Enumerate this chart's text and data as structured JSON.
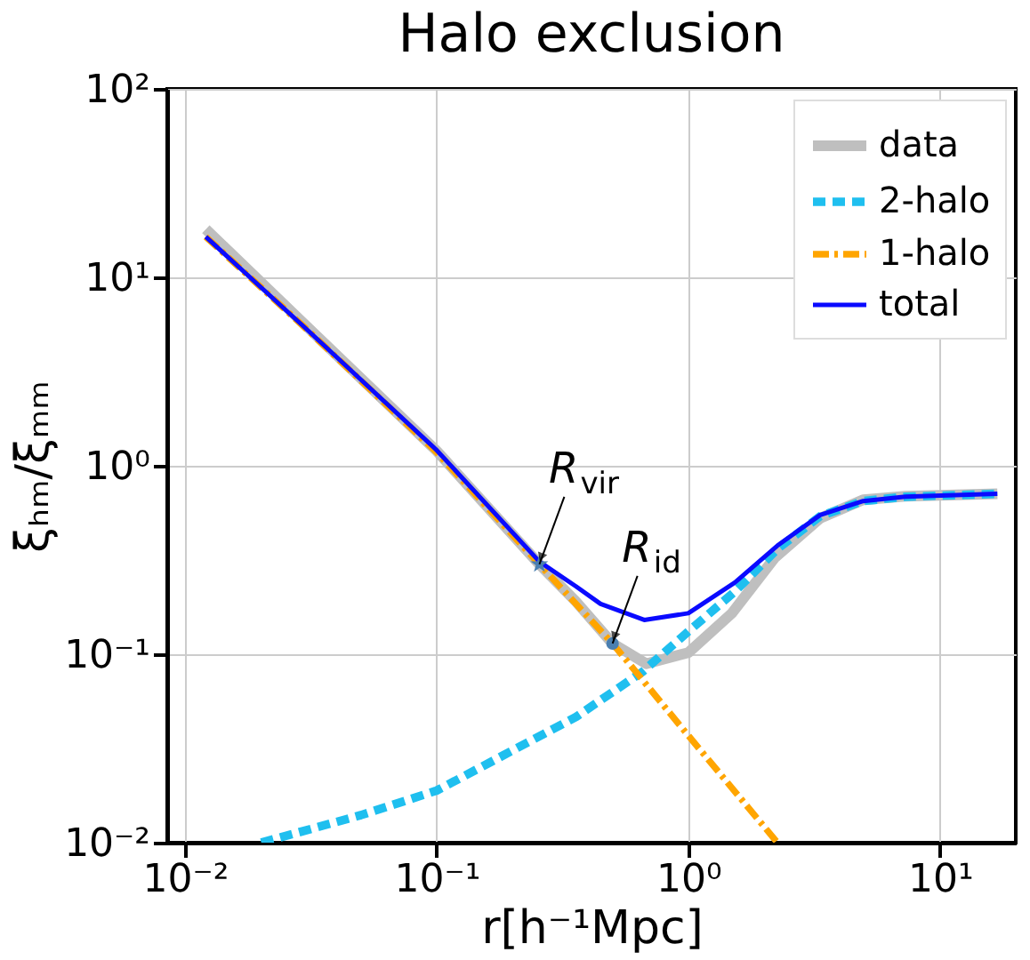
{
  "chart_data": {
    "type": "line",
    "title": "Halo exclusion",
    "xlabel": "r[h⁻¹Mpc]",
    "ylabel": "ξₕₘ/ξₘₘ",
    "log": "xy",
    "grid": true,
    "legend": "top right",
    "xlim": [
      0.0085,
      20
    ],
    "ylim": [
      0.01,
      100
    ],
    "xticks": [
      {
        "value": 0.01,
        "label": "10⁻²"
      },
      {
        "value": 0.1,
        "label": "10⁻¹"
      },
      {
        "value": 1,
        "label": "10⁰"
      },
      {
        "value": 10,
        "label": "10¹"
      }
    ],
    "yticks": [
      {
        "value": 0.01,
        "label": "10⁻²"
      },
      {
        "value": 0.1,
        "label": "10⁻¹"
      },
      {
        "value": 1,
        "label": "10⁰"
      },
      {
        "value": 10,
        "label": "10¹"
      },
      {
        "value": 100,
        "label": "10²"
      }
    ],
    "series": [
      {
        "name": "data",
        "color": "#bfbfbf",
        "line_style": "solid",
        "x": [
          0.0121,
          0.03,
          0.1,
          0.256,
          0.358,
          0.5,
          0.68,
          1.0,
          1.49,
          2.2,
          3.34,
          4.95,
          7.3,
          16.9
        ],
        "values": [
          18,
          5.6,
          1.2,
          0.3,
          0.19,
          0.114,
          0.089,
          0.102,
          0.165,
          0.324,
          0.527,
          0.66,
          0.69,
          0.71
        ]
      },
      {
        "name": "2-halo",
        "color": "#1fbfef",
        "line_style": "dashed",
        "x": [
          0.0201,
          0.05,
          0.1,
          0.358,
          0.66,
          1.0,
          1.53,
          2.26,
          3.34,
          4.95,
          7.3,
          16.9
        ],
        "values": [
          0.01,
          0.014,
          0.0189,
          0.0465,
          0.081,
          0.132,
          0.215,
          0.362,
          0.54,
          0.65,
          0.685,
          0.71
        ]
      },
      {
        "name": "1-halo",
        "color": "#ffa500",
        "line_style": "dashdot",
        "x": [
          0.0121,
          0.03,
          0.1,
          0.256,
          0.5,
          1.0,
          2.26
        ],
        "values": [
          16.4,
          5.4,
          1.18,
          0.3,
          0.114,
          0.037,
          0.01
        ]
      },
      {
        "name": "total",
        "color": "#0a0aff",
        "line_style": "solid",
        "x": [
          0.0121,
          0.03,
          0.1,
          0.256,
          0.358,
          0.448,
          0.668,
          1.0,
          1.53,
          2.26,
          3.34,
          4.95,
          7.3,
          16.9
        ],
        "values": [
          16.4,
          5.4,
          1.21,
          0.31,
          0.229,
          0.185,
          0.152,
          0.165,
          0.24,
          0.377,
          0.548,
          0.65,
          0.685,
          0.711
        ]
      },
      {
        "type": "scatter",
        "marker": "star",
        "color": "#4a7fb0",
        "x": [
          0.256
        ],
        "values": [
          0.3
        ]
      },
      {
        "type": "scatter",
        "marker": "circle",
        "color": "#4a7fb0",
        "x": [
          0.5
        ],
        "values": [
          0.114
        ]
      }
    ],
    "annotations": [
      {
        "text": "R$_{vir}$",
        "x": 0.256,
        "y": 0.3
      },
      {
        "text": "R$_{id}$",
        "x": 0.5,
        "y": 0.114
      }
    ]
  }
}
